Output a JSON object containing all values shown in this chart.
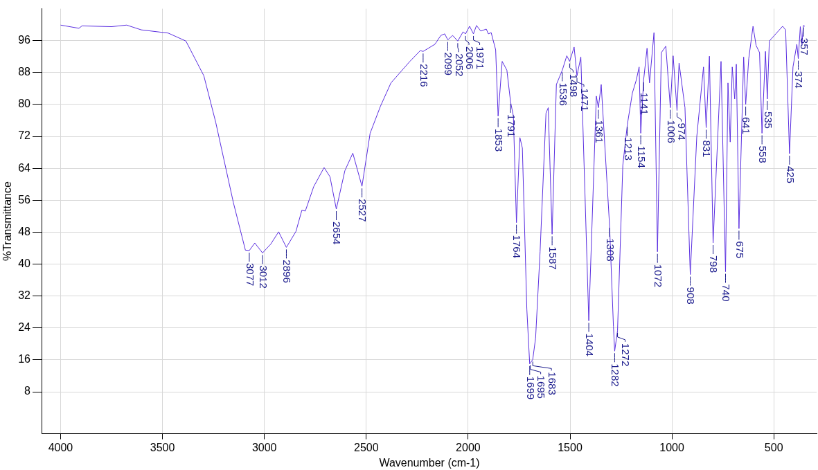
{
  "chart_data": {
    "type": "line",
    "xlabel": "Wavenumber (cm-1)",
    "ylabel": "%Transmittance",
    "xlim": [
      4090,
      290
    ],
    "ylim": [
      -2.5,
      104
    ],
    "xticks": [
      4000,
      3500,
      3000,
      2500,
      2000,
      1500,
      1000,
      500
    ],
    "yticks": [
      8,
      16,
      24,
      32,
      40,
      48,
      56,
      64,
      72,
      80,
      88,
      96
    ],
    "grid": true,
    "series": [
      {
        "color": "#5a2ee0",
        "x": [
          4000,
          3910,
          3895,
          3750,
          3676,
          3604,
          3472,
          3385,
          3297,
          3239,
          3152,
          3093,
          3074,
          3047,
          3009,
          2969,
          2930,
          2892,
          2845,
          2816,
          2799,
          2758,
          2707,
          2678,
          2647,
          2605,
          2566,
          2521,
          2481,
          2430,
          2379,
          2286,
          2235,
          2221,
          2163,
          2134,
          2115,
          2100,
          2076,
          2051,
          2025,
          2013,
          1993,
          1974,
          1959,
          1938,
          1911,
          1901,
          1887,
          1865,
          1853,
          1833,
          1810,
          1792,
          1785,
          1778,
          1763,
          1746,
          1734,
          1712,
          1698,
          1683,
          1669,
          1647,
          1618,
          1607,
          1588,
          1567,
          1538,
          1516,
          1502,
          1480,
          1466,
          1447,
          1408,
          1371,
          1361,
          1347,
          1306,
          1287,
          1281,
          1267,
          1241,
          1219,
          1194,
          1175,
          1161,
          1153,
          1139,
          1122,
          1110,
          1088,
          1071,
          1052,
          1030,
          1008,
          994,
          975,
          965,
          936,
          910,
          878,
          845,
          832,
          816,
          798,
          759,
          737,
          725,
          714,
          704,
          692,
          684,
          671,
          648,
          638,
          623,
          602,
          587,
          570,
          558,
          541,
          532,
          522,
          457,
          442,
          423,
          406,
          387,
          380,
          370,
          362,
          355,
          348
        ],
        "values": [
          99.9,
          99.1,
          99.7,
          99.5,
          99.9,
          98.7,
          97.9,
          95.9,
          87.2,
          75.6,
          55.4,
          43.5,
          43.4,
          45.3,
          42.8,
          45,
          48.1,
          44.2,
          48.2,
          53.5,
          53.3,
          59.4,
          64.2,
          61.9,
          53.8,
          63.4,
          67.8,
          59.5,
          72.8,
          79.6,
          85.4,
          90.8,
          93.5,
          93.3,
          95.1,
          97.3,
          97.7,
          96.2,
          97.3,
          95.9,
          98.2,
          97.7,
          99.6,
          97.7,
          99.8,
          98.4,
          98.9,
          97.7,
          98,
          93.7,
          77.1,
          90.8,
          88.6,
          80.7,
          78.9,
          77.1,
          50.4,
          71.7,
          69.1,
          28.7,
          15,
          16.1,
          21.5,
          43.1,
          77.8,
          79.2,
          47.5,
          85,
          88.6,
          92.2,
          90.8,
          94.4,
          87.2,
          91.9,
          25.8,
          82.1,
          79.2,
          85,
          49.6,
          24.4,
          18.2,
          23.3,
          64.8,
          74.9,
          82.9,
          86.1,
          89.4,
          72.8,
          86.1,
          94.1,
          85.4,
          98,
          43.1,
          93,
          94.6,
          79.2,
          92.2,
          78.5,
          90.4,
          79.2,
          37.4,
          72,
          89.4,
          74.2,
          92.1,
          45.3,
          90.8,
          38.1,
          85.4,
          70.6,
          89.4,
          81.4,
          90.1,
          48.9,
          91.9,
          80,
          91.5,
          99.6,
          94.8,
          93,
          72.8,
          93.3,
          81.4,
          95.9,
          99.6,
          98.7,
          67.7,
          89.4,
          95.1,
          91.5,
          99.5,
          95.1,
          99.8,
          99.6
        ]
      }
    ],
    "annotations": [
      {
        "text": "3077",
        "x": 3074,
        "y": 43.4
      },
      {
        "text": "3012",
        "x": 3009,
        "y": 42.8
      },
      {
        "text": "2896",
        "x": 2892,
        "y": 44.2
      },
      {
        "text": "2654",
        "x": 2647,
        "y": 53.8
      },
      {
        "text": "2527",
        "x": 2521,
        "y": 59.5
      },
      {
        "text": "2216",
        "x": 2221,
        "y": 93.3
      },
      {
        "text": "2099",
        "x": 2100,
        "y": 96.2
      },
      {
        "text": "2052",
        "x": 2051,
        "y": 95.9
      },
      {
        "text": "2006",
        "x": 2013,
        "y": 97.7
      },
      {
        "text": "1971",
        "x": 1974,
        "y": 97.7
      },
      {
        "text": "1853",
        "x": 1853,
        "y": 77.1
      },
      {
        "text": "1791",
        "x": 1792,
        "y": 80.7
      },
      {
        "text": "1764",
        "x": 1763,
        "y": 50.4
      },
      {
        "text": "1699",
        "x": 1698,
        "y": 15
      },
      {
        "text": "1695",
        "x": 1695,
        "y": 15.2
      },
      {
        "text": "1683",
        "x": 1683,
        "y": 16.1
      },
      {
        "text": "1587",
        "x": 1588,
        "y": 47.5
      },
      {
        "text": "1536",
        "x": 1538,
        "y": 88.6
      },
      {
        "text": "1498",
        "x": 1502,
        "y": 90.8
      },
      {
        "text": "1471",
        "x": 1466,
        "y": 87.2
      },
      {
        "text": "1404",
        "x": 1408,
        "y": 25.8
      },
      {
        "text": "1361",
        "x": 1361,
        "y": 79.2
      },
      {
        "text": "1308",
        "x": 1306,
        "y": 49.6
      },
      {
        "text": "1282",
        "x": 1281,
        "y": 18.2
      },
      {
        "text": "1272",
        "x": 1267,
        "y": 23.3
      },
      {
        "text": "1213",
        "x": 1219,
        "y": 74.9
      },
      {
        "text": "1154",
        "x": 1153,
        "y": 72.8
      },
      {
        "text": "1141",
        "x": 1139,
        "y": 86.1
      },
      {
        "text": "1072",
        "x": 1071,
        "y": 43.1
      },
      {
        "text": "1006",
        "x": 1008,
        "y": 79.2
      },
      {
        "text": "974",
        "x": 975,
        "y": 78.5
      },
      {
        "text": "908",
        "x": 910,
        "y": 37.4
      },
      {
        "text": "831",
        "x": 832,
        "y": 74.2
      },
      {
        "text": "798",
        "x": 798,
        "y": 45.3
      },
      {
        "text": "740",
        "x": 737,
        "y": 38.1
      },
      {
        "text": "675",
        "x": 671,
        "y": 48.9
      },
      {
        "text": "641",
        "x": 638,
        "y": 80
      },
      {
        "text": "558",
        "x": 558,
        "y": 72.8
      },
      {
        "text": "535",
        "x": 532,
        "y": 81.4
      },
      {
        "text": "425",
        "x": 423,
        "y": 67.7
      },
      {
        "text": "374",
        "x": 380,
        "y": 91.5
      },
      {
        "text": "357",
        "x": 355,
        "y": 99.8
      }
    ]
  }
}
